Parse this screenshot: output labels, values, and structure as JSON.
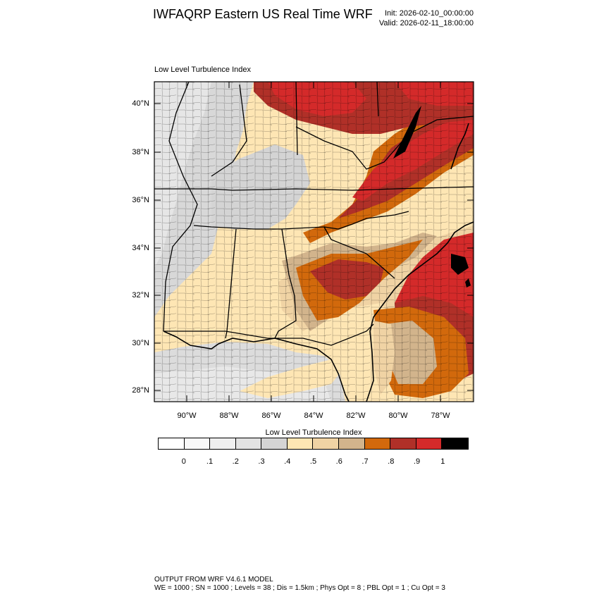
{
  "header": {
    "title": "IWFAQRP Eastern US Real Time WRF",
    "init": "Init: 2026-02-10_00:00:00",
    "valid": "Valid: 2026-02-11_18:00:00"
  },
  "map": {
    "subtitle": "Low Level Turbulence Index",
    "lat_ticks": [
      "40°N",
      "38°N",
      "36°N",
      "34°N",
      "32°N",
      "30°N",
      "28°N"
    ],
    "lon_ticks": [
      "90°W",
      "88°W",
      "86°W",
      "84°W",
      "82°W",
      "80°W",
      "78°W"
    ]
  },
  "colorbar": {
    "title": "Low Level Turbulence Index",
    "colors": [
      "#ffffff",
      "#f8f8f8",
      "#efefef",
      "#e2e2e2",
      "#d4d4d4",
      "#fee6b4",
      "#f0d3a4",
      "#d2b48c",
      "#d2690c",
      "#b03028",
      "#d42a2a",
      "#000000"
    ],
    "labels": [
      "0",
      ".1",
      ".2",
      ".3",
      ".4",
      ".5",
      ".6",
      ".7",
      ".8",
      ".9",
      "1"
    ]
  },
  "footer": {
    "line1": "OUTPUT FROM WRF V4.6.1 MODEL",
    "line2": "WE = 1000 ; SN = 1000 ; Levels = 38 ; Dis = 1.5km ; Phys Opt = 8 ; PBL Opt = 1 ; Cu Opt = 3"
  }
}
